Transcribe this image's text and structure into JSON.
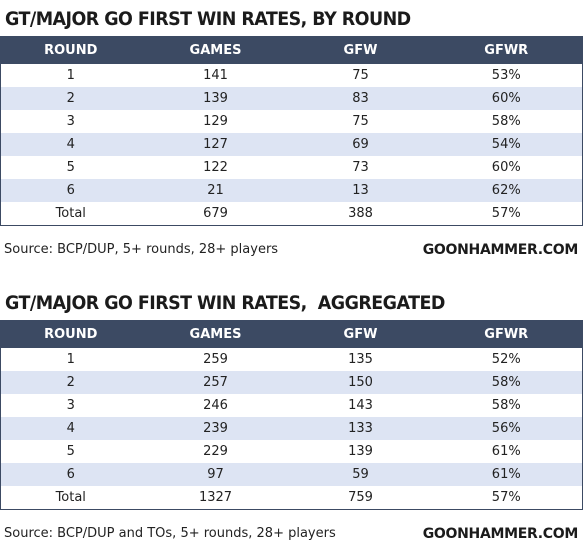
{
  "tables": [
    {
      "title": "GT/MAJOR GO FIRST WIN RATES, BY ROUND",
      "headers": [
        "ROUND",
        "GAMES",
        "GFW",
        "GFWR"
      ],
      "rows": [
        [
          "1",
          "141",
          "75",
          "53%"
        ],
        [
          "2",
          "139",
          "83",
          "60%"
        ],
        [
          "3",
          "129",
          "75",
          "58%"
        ],
        [
          "4",
          "127",
          "69",
          "54%"
        ],
        [
          "5",
          "122",
          "73",
          "60%"
        ],
        [
          "6",
          "21",
          "13",
          "62%"
        ],
        [
          "Total",
          "679",
          "388",
          "57%"
        ]
      ],
      "source": "Source: BCP/DUP, 5+ rounds, 28+ players",
      "brand": "GOONHAMMER.COM"
    },
    {
      "title": "GT/MAJOR GO FIRST WIN RATES,  AGGREGATED",
      "headers": [
        "ROUND",
        "GAMES",
        "GFW",
        "GFWR"
      ],
      "rows": [
        [
          "1",
          "259",
          "135",
          "52%"
        ],
        [
          "2",
          "257",
          "150",
          "58%"
        ],
        [
          "3",
          "246",
          "143",
          "58%"
        ],
        [
          "4",
          "239",
          "133",
          "56%"
        ],
        [
          "5",
          "229",
          "139",
          "61%"
        ],
        [
          "6",
          "97",
          "59",
          "61%"
        ],
        [
          "Total",
          "1327",
          "759",
          "57%"
        ]
      ],
      "source": "Source: BCP/DUP and TOs, 5+ rounds, 28+ players",
      "brand": "GOONHAMMER.COM"
    }
  ],
  "colors": {
    "header_bg": "#3c4a63",
    "header_text": "#ffffff",
    "stripe_bg": "#dde4f3"
  }
}
